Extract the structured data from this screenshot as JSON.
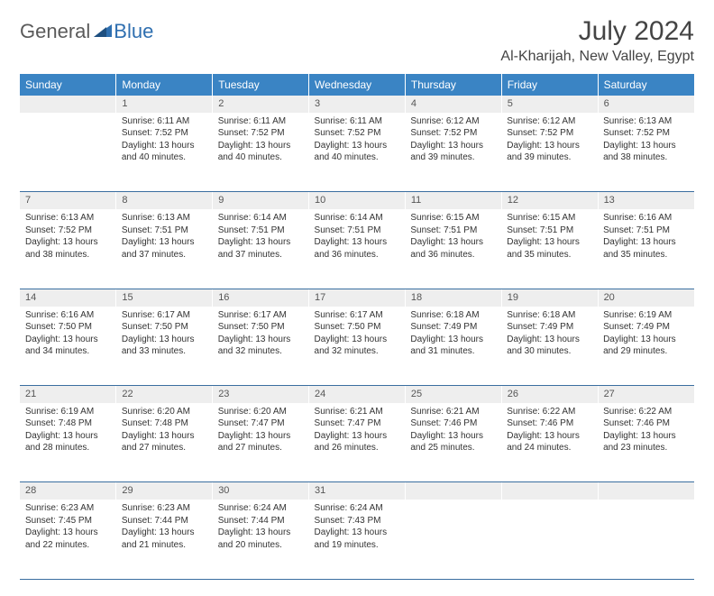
{
  "brand": {
    "part1": "General",
    "part2": "Blue"
  },
  "title": "July 2024",
  "location": "Al-Kharijah, New Valley, Egypt",
  "colors": {
    "header_bg": "#3a84c4",
    "header_text": "#ffffff",
    "daynum_bg": "#eeeeee",
    "row_divider": "#3a6ea0",
    "text": "#333333",
    "brand_gray": "#5a5a5a",
    "brand_blue": "#2f6fb0"
  },
  "dayHeaders": [
    "Sunday",
    "Monday",
    "Tuesday",
    "Wednesday",
    "Thursday",
    "Friday",
    "Saturday"
  ],
  "weeks": [
    {
      "nums": [
        "",
        "1",
        "2",
        "3",
        "4",
        "5",
        "6"
      ],
      "cells": [
        null,
        {
          "sunrise": "Sunrise: 6:11 AM",
          "sunset": "Sunset: 7:52 PM",
          "day1": "Daylight: 13 hours",
          "day2": "and 40 minutes."
        },
        {
          "sunrise": "Sunrise: 6:11 AM",
          "sunset": "Sunset: 7:52 PM",
          "day1": "Daylight: 13 hours",
          "day2": "and 40 minutes."
        },
        {
          "sunrise": "Sunrise: 6:11 AM",
          "sunset": "Sunset: 7:52 PM",
          "day1": "Daylight: 13 hours",
          "day2": "and 40 minutes."
        },
        {
          "sunrise": "Sunrise: 6:12 AM",
          "sunset": "Sunset: 7:52 PM",
          "day1": "Daylight: 13 hours",
          "day2": "and 39 minutes."
        },
        {
          "sunrise": "Sunrise: 6:12 AM",
          "sunset": "Sunset: 7:52 PM",
          "day1": "Daylight: 13 hours",
          "day2": "and 39 minutes."
        },
        {
          "sunrise": "Sunrise: 6:13 AM",
          "sunset": "Sunset: 7:52 PM",
          "day1": "Daylight: 13 hours",
          "day2": "and 38 minutes."
        }
      ]
    },
    {
      "nums": [
        "7",
        "8",
        "9",
        "10",
        "11",
        "12",
        "13"
      ],
      "cells": [
        {
          "sunrise": "Sunrise: 6:13 AM",
          "sunset": "Sunset: 7:52 PM",
          "day1": "Daylight: 13 hours",
          "day2": "and 38 minutes."
        },
        {
          "sunrise": "Sunrise: 6:13 AM",
          "sunset": "Sunset: 7:51 PM",
          "day1": "Daylight: 13 hours",
          "day2": "and 37 minutes."
        },
        {
          "sunrise": "Sunrise: 6:14 AM",
          "sunset": "Sunset: 7:51 PM",
          "day1": "Daylight: 13 hours",
          "day2": "and 37 minutes."
        },
        {
          "sunrise": "Sunrise: 6:14 AM",
          "sunset": "Sunset: 7:51 PM",
          "day1": "Daylight: 13 hours",
          "day2": "and 36 minutes."
        },
        {
          "sunrise": "Sunrise: 6:15 AM",
          "sunset": "Sunset: 7:51 PM",
          "day1": "Daylight: 13 hours",
          "day2": "and 36 minutes."
        },
        {
          "sunrise": "Sunrise: 6:15 AM",
          "sunset": "Sunset: 7:51 PM",
          "day1": "Daylight: 13 hours",
          "day2": "and 35 minutes."
        },
        {
          "sunrise": "Sunrise: 6:16 AM",
          "sunset": "Sunset: 7:51 PM",
          "day1": "Daylight: 13 hours",
          "day2": "and 35 minutes."
        }
      ]
    },
    {
      "nums": [
        "14",
        "15",
        "16",
        "17",
        "18",
        "19",
        "20"
      ],
      "cells": [
        {
          "sunrise": "Sunrise: 6:16 AM",
          "sunset": "Sunset: 7:50 PM",
          "day1": "Daylight: 13 hours",
          "day2": "and 34 minutes."
        },
        {
          "sunrise": "Sunrise: 6:17 AM",
          "sunset": "Sunset: 7:50 PM",
          "day1": "Daylight: 13 hours",
          "day2": "and 33 minutes."
        },
        {
          "sunrise": "Sunrise: 6:17 AM",
          "sunset": "Sunset: 7:50 PM",
          "day1": "Daylight: 13 hours",
          "day2": "and 32 minutes."
        },
        {
          "sunrise": "Sunrise: 6:17 AM",
          "sunset": "Sunset: 7:50 PM",
          "day1": "Daylight: 13 hours",
          "day2": "and 32 minutes."
        },
        {
          "sunrise": "Sunrise: 6:18 AM",
          "sunset": "Sunset: 7:49 PM",
          "day1": "Daylight: 13 hours",
          "day2": "and 31 minutes."
        },
        {
          "sunrise": "Sunrise: 6:18 AM",
          "sunset": "Sunset: 7:49 PM",
          "day1": "Daylight: 13 hours",
          "day2": "and 30 minutes."
        },
        {
          "sunrise": "Sunrise: 6:19 AM",
          "sunset": "Sunset: 7:49 PM",
          "day1": "Daylight: 13 hours",
          "day2": "and 29 minutes."
        }
      ]
    },
    {
      "nums": [
        "21",
        "22",
        "23",
        "24",
        "25",
        "26",
        "27"
      ],
      "cells": [
        {
          "sunrise": "Sunrise: 6:19 AM",
          "sunset": "Sunset: 7:48 PM",
          "day1": "Daylight: 13 hours",
          "day2": "and 28 minutes."
        },
        {
          "sunrise": "Sunrise: 6:20 AM",
          "sunset": "Sunset: 7:48 PM",
          "day1": "Daylight: 13 hours",
          "day2": "and 27 minutes."
        },
        {
          "sunrise": "Sunrise: 6:20 AM",
          "sunset": "Sunset: 7:47 PM",
          "day1": "Daylight: 13 hours",
          "day2": "and 27 minutes."
        },
        {
          "sunrise": "Sunrise: 6:21 AM",
          "sunset": "Sunset: 7:47 PM",
          "day1": "Daylight: 13 hours",
          "day2": "and 26 minutes."
        },
        {
          "sunrise": "Sunrise: 6:21 AM",
          "sunset": "Sunset: 7:46 PM",
          "day1": "Daylight: 13 hours",
          "day2": "and 25 minutes."
        },
        {
          "sunrise": "Sunrise: 6:22 AM",
          "sunset": "Sunset: 7:46 PM",
          "day1": "Daylight: 13 hours",
          "day2": "and 24 minutes."
        },
        {
          "sunrise": "Sunrise: 6:22 AM",
          "sunset": "Sunset: 7:46 PM",
          "day1": "Daylight: 13 hours",
          "day2": "and 23 minutes."
        }
      ]
    },
    {
      "nums": [
        "28",
        "29",
        "30",
        "31",
        "",
        "",
        ""
      ],
      "cells": [
        {
          "sunrise": "Sunrise: 6:23 AM",
          "sunset": "Sunset: 7:45 PM",
          "day1": "Daylight: 13 hours",
          "day2": "and 22 minutes."
        },
        {
          "sunrise": "Sunrise: 6:23 AM",
          "sunset": "Sunset: 7:44 PM",
          "day1": "Daylight: 13 hours",
          "day2": "and 21 minutes."
        },
        {
          "sunrise": "Sunrise: 6:24 AM",
          "sunset": "Sunset: 7:44 PM",
          "day1": "Daylight: 13 hours",
          "day2": "and 20 minutes."
        },
        {
          "sunrise": "Sunrise: 6:24 AM",
          "sunset": "Sunset: 7:43 PM",
          "day1": "Daylight: 13 hours",
          "day2": "and 19 minutes."
        },
        null,
        null,
        null
      ]
    }
  ]
}
